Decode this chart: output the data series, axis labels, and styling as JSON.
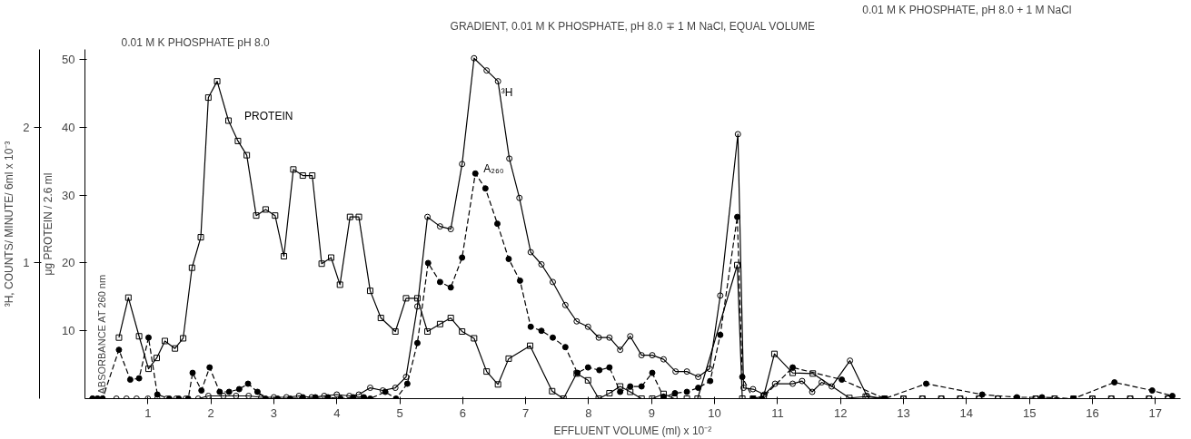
{
  "chart_data": {
    "type": "line",
    "xlabel": "EFFLUENT VOLUME (ml) x 10⁻²",
    "ylabel": "μg PROTEIN / 2.6 ml",
    "y2label": "³H, COUNTS/ MINUTE/ 6ml x 10⁻³",
    "annotations": [
      "0.01 M K PHOSPHATE pH 8.0",
      "GRADIENT, 0.01 M K PHOSPHATE, pH 8.0 ∓ 1 M NaCl, EQUAL VOLUME",
      "0.01 M K PHOSPHATE, pH 8.0 + 1 M NaCl",
      "ABSORBANCE AT 260 nm"
    ],
    "xlim": [
      0,
      17.4
    ],
    "xticks": [
      1,
      2,
      3,
      4,
      5,
      6,
      7,
      8,
      9,
      10,
      11,
      12,
      13,
      14,
      15,
      16,
      17
    ],
    "ylim": [
      0,
      51.5
    ],
    "yticks": [
      10,
      20,
      30,
      40,
      50
    ],
    "y2lim": [
      0,
      2.575
    ],
    "y2ticks": [
      1,
      2
    ],
    "grid": false,
    "series": [
      {
        "name": "PROTEIN",
        "color": "#000000",
        "marker": "square",
        "line_style": "solid",
        "x": [
          0.54,
          0.69,
          0.86,
          1.01,
          1.14,
          1.27,
          1.43,
          1.56,
          1.7,
          1.84,
          1.96,
          2.1,
          2.28,
          2.43,
          2.57,
          2.72,
          2.87,
          3.02,
          3.16,
          3.31,
          3.46,
          3.61,
          3.76,
          3.91,
          4.05,
          4.21,
          4.35,
          4.53,
          4.7,
          4.93,
          5.1,
          5.28,
          5.44,
          5.64,
          5.81,
          5.99,
          6.18,
          6.38,
          6.56,
          6.73,
          7.07,
          7.42,
          7.6,
          7.81,
          7.99,
          8.16,
          8.33,
          8.5,
          8.66,
          8.84,
          9.01,
          9.19,
          9.36,
          9.56,
          9.73,
          10.36,
          10.44,
          10.61,
          10.78,
          10.95,
          11.24,
          11.56,
          12.14,
          12.4,
          12.7,
          13.0,
          13.3,
          13.6,
          13.9,
          14.2,
          14.5,
          14.8,
          15.1,
          15.4,
          15.7,
          16.0,
          16.3,
          16.6,
          16.9,
          17.2
        ],
        "values": [
          9.0,
          14.9,
          9.2,
          4.4,
          6.0,
          8.5,
          7.4,
          8.9,
          19.3,
          23.8,
          44.4,
          46.8,
          41.0,
          38.0,
          35.9,
          27.0,
          27.9,
          27.0,
          21.0,
          33.8,
          32.9,
          32.9,
          19.9,
          20.8,
          16.8,
          26.8,
          26.8,
          15.9,
          11.9,
          9.9,
          14.8,
          14.8,
          9.9,
          11.0,
          11.9,
          9.9,
          8.9,
          4.0,
          2.1,
          5.9,
          7.8,
          1.1,
          0,
          3.7,
          2.7,
          0,
          0.8,
          1.8,
          1.0,
          0,
          0,
          0.7,
          0,
          0,
          0,
          19.7,
          0,
          0,
          0.4,
          6.6,
          3.8,
          3.7,
          0.1,
          0.3,
          0,
          0,
          0,
          0,
          0,
          0,
          0,
          0,
          0,
          0,
          0,
          0,
          0,
          0,
          0,
          0
        ]
      },
      {
        "name": "³H",
        "color": "#000000",
        "marker": "circle",
        "line_style": "solid",
        "axis": "y2",
        "x": [
          0.12,
          0.2,
          0.28,
          0.5,
          0.66,
          0.82,
          1.0,
          1.15,
          1.3,
          1.45,
          1.6,
          1.8,
          1.96,
          2.2,
          2.4,
          2.6,
          2.8,
          3.0,
          3.2,
          3.4,
          3.6,
          3.8,
          4.0,
          4.2,
          4.35,
          4.53,
          4.73,
          4.93,
          5.1,
          5.28,
          5.44,
          5.64,
          5.81,
          5.99,
          6.18,
          6.38,
          6.56,
          6.74,
          6.9,
          7.08,
          7.25,
          7.43,
          7.63,
          7.81,
          7.99,
          8.16,
          8.33,
          8.5,
          8.66,
          8.84,
          9.01,
          9.19,
          9.38,
          9.56,
          9.74,
          9.92,
          10.09,
          10.37,
          10.46,
          10.61,
          10.79,
          10.96,
          11.24,
          11.39,
          11.55,
          11.7,
          11.86,
          12.15,
          12.42,
          12.7,
          13.0,
          13.3,
          13.6,
          13.9,
          14.2,
          14.5,
          14.8,
          15.1,
          15.4,
          15.7,
          16.0,
          16.3,
          16.6,
          16.9,
          17.2
        ],
        "values": [
          0,
          0,
          0,
          0,
          0,
          0,
          0,
          0,
          0,
          0,
          0,
          0,
          0.02,
          0.02,
          0.02,
          0.02,
          0.01,
          0.01,
          0.01,
          0.02,
          0.01,
          0.02,
          0.03,
          0.02,
          0.03,
          0.08,
          0.06,
          0.08,
          0.16,
          0.68,
          1.34,
          1.27,
          1.25,
          1.73,
          2.51,
          2.42,
          2.34,
          1.77,
          1.48,
          1.08,
          0.99,
          0.86,
          0.69,
          0.57,
          0.53,
          0.45,
          0.45,
          0.36,
          0.46,
          0.32,
          0.32,
          0.29,
          0.2,
          0.2,
          0.16,
          0.22,
          0.76,
          1.95,
          0.08,
          0.07,
          0.03,
          0.11,
          0.11,
          0.13,
          0.05,
          0.12,
          0.09,
          0.28,
          0.02,
          0,
          0,
          0,
          0,
          0,
          0,
          0,
          0,
          0,
          0,
          0,
          0,
          0,
          0,
          0,
          0
        ]
      },
      {
        "name": "A₂₆₀",
        "color": "#000000",
        "marker": "circle",
        "line_style": "dashed",
        "axis": "y2",
        "x": [
          0.12,
          0.2,
          0.28,
          0.54,
          0.72,
          0.86,
          1.01,
          1.15,
          1.34,
          1.49,
          1.64,
          1.71,
          1.85,
          1.98,
          2.14,
          2.29,
          2.45,
          2.59,
          2.74,
          2.87,
          3.06,
          3.26,
          3.46,
          3.66,
          3.86,
          4.06,
          4.26,
          4.43,
          4.53,
          4.77,
          4.94,
          5.12,
          5.28,
          5.45,
          5.64,
          5.81,
          5.99,
          6.2,
          6.36,
          6.55,
          6.73,
          6.91,
          7.08,
          7.25,
          7.43,
          7.63,
          7.82,
          7.99,
          8.17,
          8.33,
          8.5,
          8.66,
          8.84,
          9.01,
          9.19,
          9.37,
          9.56,
          9.74,
          9.93,
          10.09,
          10.36,
          10.44,
          10.61,
          10.75,
          11.24,
          12.02,
          12.7,
          13.36,
          14.25,
          14.8,
          15.2,
          15.7,
          16.35,
          16.95,
          17.27
        ],
        "values": [
          0,
          0,
          0,
          0.36,
          0.14,
          0.15,
          0.45,
          0.03,
          0,
          0,
          0,
          0.19,
          0.06,
          0.23,
          0.05,
          0.05,
          0.07,
          0.11,
          0.05,
          0,
          0,
          0,
          0.01,
          0.01,
          0.01,
          0,
          0.01,
          0.01,
          0,
          0.05,
          0,
          0.11,
          0.41,
          1.0,
          0.86,
          0.82,
          1.04,
          1.66,
          1.55,
          1.29,
          1.03,
          0.87,
          0.53,
          0.5,
          0.45,
          0.38,
          0.19,
          0.23,
          0.21,
          0.23,
          0.05,
          0.09,
          0.09,
          0.19,
          0.01,
          0.04,
          0.05,
          0.08,
          0.13,
          0.47,
          1.34,
          0.16,
          0,
          0,
          0.23,
          0.14,
          0,
          0.11,
          0.03,
          0.01,
          0.01,
          0,
          0.12,
          0.06,
          0.02
        ]
      }
    ]
  }
}
